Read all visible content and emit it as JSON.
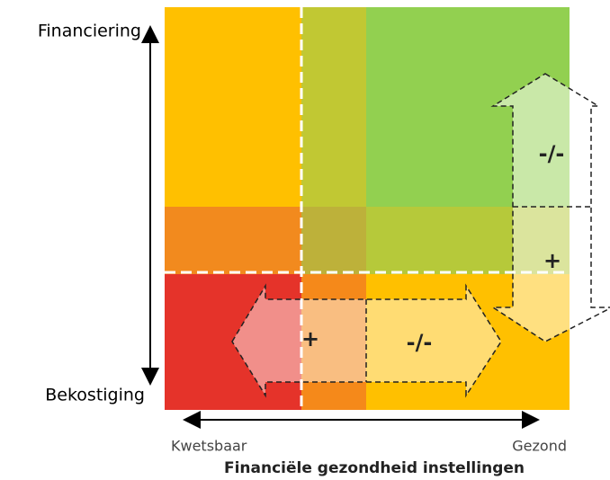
{
  "axes": {
    "y_top": "Financiering",
    "y_bottom": "Bekostiging",
    "x_left": "Kwetsbaar",
    "x_right": "Gezond",
    "x_title": "Financiële gezondheid instellingen"
  },
  "vertical_arrow": {
    "upper": "-/-",
    "lower": "+"
  },
  "horizontal_arrow": {
    "left": "+",
    "right": "-/-"
  }
}
